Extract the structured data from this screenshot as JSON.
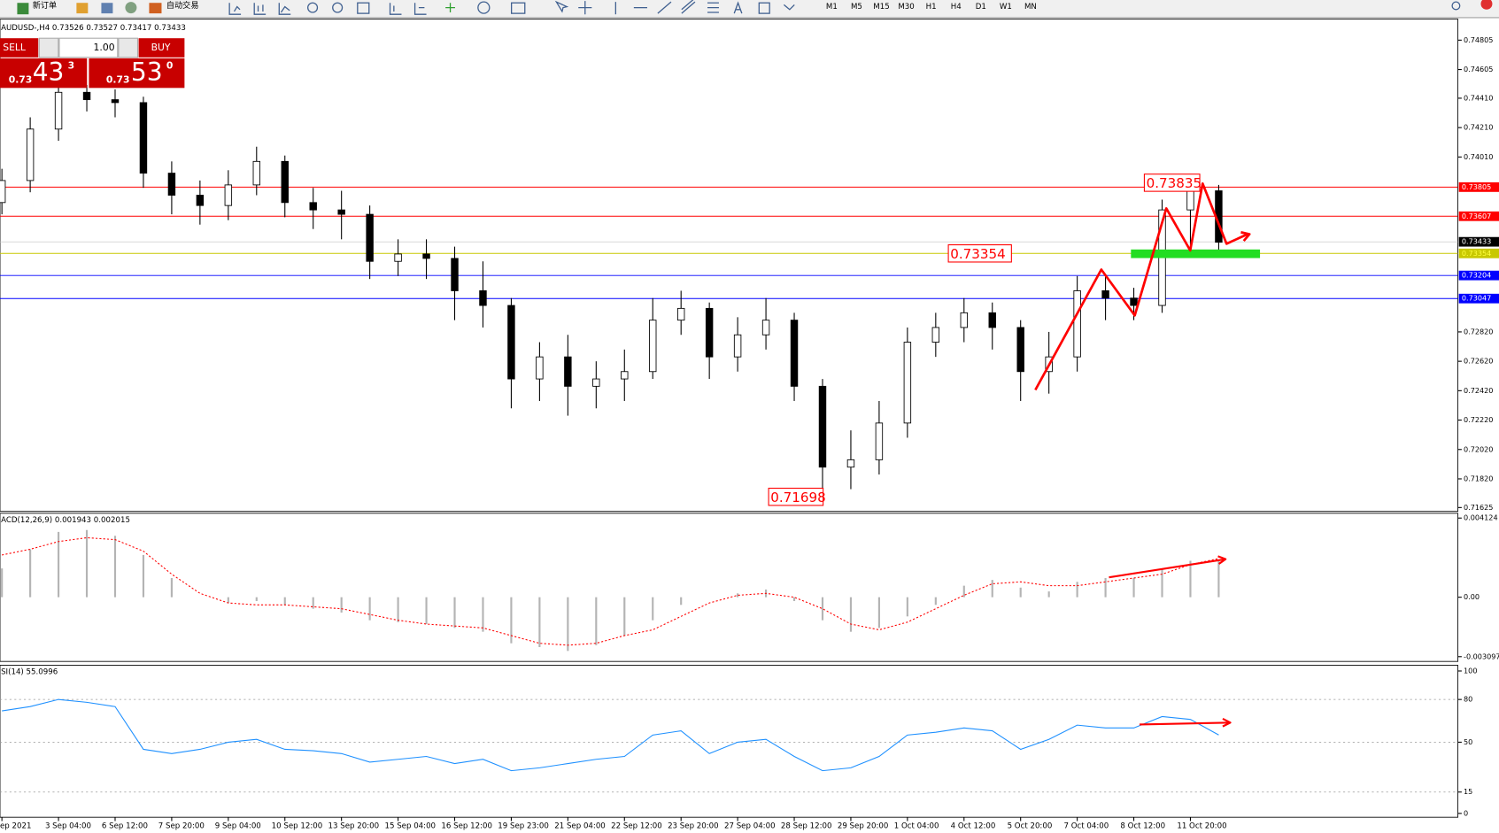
{
  "toolbar": {
    "buttons": [
      "新订单",
      "自动交易"
    ],
    "timeframes": [
      "M1",
      "M5",
      "M15",
      "M30",
      "H1",
      "H4",
      "D1",
      "W1",
      "MN"
    ]
  },
  "one_click": {
    "sell": "SELL",
    "volume": "1.00",
    "buy": "BUY",
    "sell_price": {
      "prefix": "0.73",
      "big": "43",
      "small": "3"
    },
    "buy_price": {
      "prefix": "0.73",
      "big": "53",
      "small": "0"
    }
  },
  "chart_data": [
    {
      "type": "candlestick",
      "title": "AUDUSD-,H4 0.73526 0.73527 0.73417 0.73433",
      "up_color": "#ffffff",
      "down_color": "#000000",
      "wick_color": "#000000",
      "open": [
        0.737,
        0.7385,
        0.742,
        0.7445,
        0.744,
        0.7438,
        0.739,
        0.7375,
        0.7368,
        0.7382,
        0.7398,
        0.737,
        0.7365,
        0.7362,
        0.733,
        0.7335,
        0.7332,
        0.731,
        0.73,
        0.725,
        0.7265,
        0.7245,
        0.725,
        0.7255,
        0.729,
        0.7298,
        0.7265,
        0.728,
        0.729,
        0.7245,
        0.719,
        0.7195,
        0.722,
        0.7275,
        0.7285,
        0.7295,
        0.7285,
        0.7255,
        0.7265,
        0.731,
        0.7305,
        0.73,
        0.7365,
        0.7378
      ],
      "high": [
        0.7393,
        0.7428,
        0.745,
        0.745,
        0.7447,
        0.7442,
        0.7398,
        0.7385,
        0.7392,
        0.7408,
        0.7402,
        0.738,
        0.7378,
        0.7368,
        0.7345,
        0.7345,
        0.734,
        0.733,
        0.7305,
        0.7275,
        0.728,
        0.7262,
        0.727,
        0.7305,
        0.731,
        0.7302,
        0.7292,
        0.7305,
        0.7295,
        0.725,
        0.7215,
        0.7235,
        0.7285,
        0.7295,
        0.7305,
        0.7302,
        0.729,
        0.7282,
        0.732,
        0.732,
        0.7312,
        0.7372,
        0.73835,
        0.7382
      ],
      "low": [
        0.7362,
        0.7377,
        0.7412,
        0.7432,
        0.7428,
        0.738,
        0.7362,
        0.7355,
        0.7358,
        0.7375,
        0.736,
        0.7352,
        0.7345,
        0.7318,
        0.732,
        0.7318,
        0.729,
        0.7285,
        0.723,
        0.7235,
        0.7225,
        0.723,
        0.7235,
        0.725,
        0.728,
        0.725,
        0.7255,
        0.727,
        0.7235,
        0.71698,
        0.7175,
        0.7185,
        0.721,
        0.7265,
        0.7275,
        0.727,
        0.7235,
        0.724,
        0.7255,
        0.729,
        0.729,
        0.7295,
        0.734,
        0.7335
      ],
      "close": [
        0.7385,
        0.742,
        0.7445,
        0.744,
        0.7438,
        0.739,
        0.7375,
        0.7368,
        0.7382,
        0.7398,
        0.737,
        0.7365,
        0.7362,
        0.733,
        0.7335,
        0.7332,
        0.731,
        0.73,
        0.725,
        0.7265,
        0.7245,
        0.725,
        0.7255,
        0.729,
        0.7298,
        0.7265,
        0.728,
        0.729,
        0.7245,
        0.719,
        0.7195,
        0.722,
        0.7275,
        0.7285,
        0.7295,
        0.7285,
        0.7255,
        0.7265,
        0.731,
        0.7305,
        0.73,
        0.7365,
        0.7378,
        0.7343
      ],
      "ylim": [
        0.71625,
        0.74805
      ],
      "yticks": [
        0.74805,
        0.74605,
        {
          "value": 0.7441,
          "label": "0.74410"
        },
        {
          "value": 0.7421,
          "label": "0.74210"
        },
        {
          "value": 0.7401,
          "label": "0.74010"
        },
        {
          "value": 0.7282,
          "label": "0.72820"
        },
        {
          "value": 0.7262,
          "label": "0.72620"
        },
        {
          "value": 0.7242,
          "label": "0.72420"
        },
        {
          "value": 0.7222,
          "label": "0.72220"
        },
        {
          "value": 0.7202,
          "label": "0.72020"
        },
        {
          "value": 0.7182,
          "label": "0.71820"
        },
        0.71625
      ],
      "levels": [
        {
          "value": 0.73805,
          "color": "#ff0000"
        },
        {
          "value": 0.73607,
          "color": "#ff0000"
        },
        {
          "value": 0.73354,
          "color": "#c8c800"
        },
        {
          "value": 0.73204,
          "color": "#0000ff"
        },
        {
          "value": 0.73047,
          "color": "#0000ff"
        }
      ],
      "bid": 0.73433,
      "annotations": [
        0.73835,
        0.73354,
        0.71698
      ]
    },
    {
      "type": "macd",
      "title": "ACD(12,26,9) 0.001943 0.002015",
      "histogram": {
        "color": "#b4b4b4",
        "values": [
          0.0015,
          0.0025,
          0.0034,
          0.0035,
          0.0032,
          0.0022,
          0.001,
          0.0,
          -0.0003,
          -0.0002,
          -0.0004,
          -0.0006,
          -0.0008,
          -0.0012,
          -0.0013,
          -0.0014,
          -0.0016,
          -0.0018,
          -0.0024,
          -0.0026,
          -0.0028,
          -0.0025,
          -0.002,
          -0.0012,
          -0.0004,
          0.0,
          0.0002,
          0.0004,
          -0.0002,
          -0.0012,
          -0.0018,
          -0.0016,
          -0.001,
          -0.0004,
          0.0006,
          0.0009,
          0.0005,
          0.0003,
          0.0008,
          0.001,
          0.001,
          0.0015,
          0.0019,
          0.001943
        ]
      },
      "signal": {
        "color": "#ff0000",
        "values": [
          0.0022,
          0.0025,
          0.0029,
          0.0031,
          0.003,
          0.0024,
          0.0012,
          0.0002,
          -0.0003,
          -0.0004,
          -0.0004,
          -0.0005,
          -0.0006,
          -0.0009,
          -0.0012,
          -0.0014,
          -0.0015,
          -0.0016,
          -0.002,
          -0.0024,
          -0.0025,
          -0.0024,
          -0.002,
          -0.0017,
          -0.001,
          -0.0003,
          0.0001,
          0.0002,
          0.0,
          -0.0006,
          -0.0014,
          -0.0017,
          -0.0013,
          -0.0006,
          0.0001,
          0.0007,
          0.0008,
          0.0006,
          0.0006,
          0.0008,
          0.001,
          0.0012,
          0.0017,
          0.002015
        ]
      },
      "ylim": [
        -0.003097,
        0.004124
      ],
      "yticks": [
        0.004124,
        {
          "value": 0,
          "label": "0.00"
        },
        -0.003097
      ]
    },
    {
      "type": "line",
      "title": "SI(14) 55.0996",
      "color": "#1e90ff",
      "values": [
        72,
        75,
        80,
        78,
        75,
        45,
        42,
        45,
        50,
        52,
        45,
        44,
        42,
        36,
        38,
        40,
        35,
        38,
        30,
        32,
        35,
        38,
        40,
        55,
        58,
        42,
        50,
        52,
        40,
        30,
        32,
        40,
        55,
        57,
        60,
        58,
        45,
        52,
        62,
        60,
        60,
        68,
        66,
        55.0996
      ],
      "categories": [
        "ep 2021",
        null,
        "3 Sep 04:00",
        null,
        "6 Sep 12:00",
        null,
        "7 Sep 20:00",
        null,
        "9 Sep 04:00",
        null,
        "10 Sep 12:00",
        null,
        "13 Sep 20:00",
        null,
        "15 Sep 04:00",
        null,
        "16 Sep 12:00",
        null,
        "19 Sep 23:00",
        null,
        "21 Sep 04:00",
        null,
        "22 Sep 12:00",
        null,
        "23 Sep 20:00",
        null,
        "27 Sep 04:00",
        null,
        "28 Sep 12:00",
        null,
        "29 Sep 20:00",
        null,
        "1 Oct 04:00",
        null,
        "4 Oct 12:00",
        null,
        "5 Oct 20:00",
        null,
        "7 Oct 04:00",
        null,
        "8 Oct 12:00",
        null,
        "11 Oct 20:00",
        null
      ],
      "ylim": [
        0,
        100
      ],
      "yticks": [
        100,
        80,
        50,
        15,
        0
      ],
      "grid": true
    }
  ]
}
